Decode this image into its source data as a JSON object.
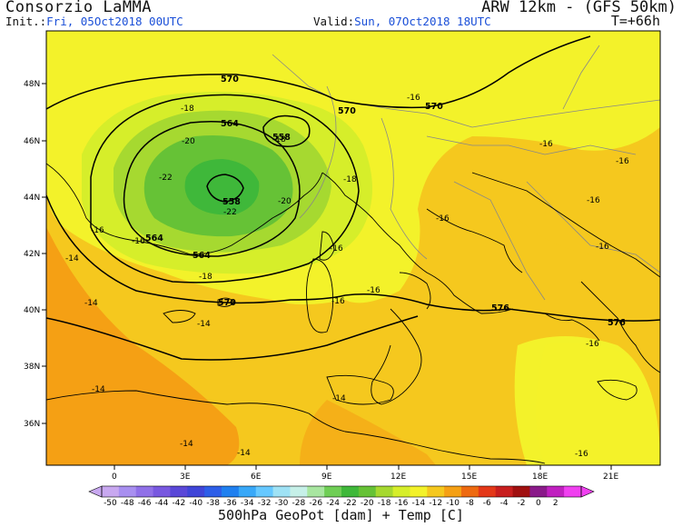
{
  "header": {
    "title_left": "Consorzio LaMMA",
    "title_right": "ARW 12km - (GFS 50km)",
    "init_label": "Init.:",
    "init_value": "Fri, 05Oct2018 00UTC",
    "valid_label": "Valid:",
    "valid_value": "Sun, 07Oct2018 18UTC",
    "lead_time": "T=+66h"
  },
  "axes": {
    "lat_labels": [
      "48N",
      "46N",
      "44N",
      "42N",
      "40N",
      "38N",
      "36N"
    ],
    "lon_labels": [
      "0",
      "3E",
      "6E",
      "9E",
      "12E",
      "15E",
      "18E",
      "21E"
    ]
  },
  "geopotential_contours_dam": [
    {
      "label": "570"
    },
    {
      "label": "570"
    },
    {
      "label": "570"
    },
    {
      "label": "570"
    },
    {
      "label": "576"
    },
    {
      "label": "576"
    },
    {
      "label": "564"
    },
    {
      "label": "564"
    },
    {
      "label": "564"
    },
    {
      "label": "558"
    },
    {
      "label": "558"
    }
  ],
  "temperature_labels_c": [
    {
      "label": "-18"
    },
    {
      "label": "-20"
    },
    {
      "label": "-22"
    },
    {
      "label": "-22"
    },
    {
      "label": "-20"
    },
    {
      "label": "-18"
    },
    {
      "label": "-18"
    },
    {
      "label": "-16"
    },
    {
      "label": "-16"
    },
    {
      "label": "-16"
    },
    {
      "label": "-16"
    },
    {
      "label": "-16"
    },
    {
      "label": "-16"
    },
    {
      "label": "-16"
    },
    {
      "label": "-16"
    },
    {
      "label": "-14"
    },
    {
      "label": "-14"
    },
    {
      "label": "-14"
    },
    {
      "label": "-14"
    },
    {
      "label": "-14"
    },
    {
      "label": "-14"
    },
    {
      "label": "-14"
    },
    {
      "label": "-16"
    },
    {
      "label": "-16"
    },
    {
      "label": "-16"
    },
    {
      "label": "-16"
    },
    {
      "label": "-18"
    },
    {
      "label": "-16"
    }
  ],
  "colorbar": {
    "ticks": [
      "-50",
      "-48",
      "-46",
      "-44",
      "-42",
      "-40",
      "-38",
      "-36",
      "-34",
      "-32",
      "-30",
      "-28",
      "-26",
      "-24",
      "-22",
      "-20",
      "-18",
      "-16",
      "-14",
      "-12",
      "-10",
      "-8",
      "-6",
      "-4",
      "-2",
      "0",
      "2"
    ],
    "colors": [
      "#c8a8f0",
      "#a88ff0",
      "#9070e8",
      "#7858e0",
      "#5a48d8",
      "#3f45d8",
      "#2d5ee8",
      "#1f80f0",
      "#38a8f8",
      "#66c8ff",
      "#9fe2f5",
      "#c6f0e8",
      "#a8e6a0",
      "#6fce55",
      "#3fb83a",
      "#66c236",
      "#a6d930",
      "#d6ee2a",
      "#f3f22a",
      "#f5c81e",
      "#f5a014",
      "#ee6a10",
      "#e43818",
      "#c81e1e",
      "#a01010",
      "#8a1a8a",
      "#c020c0",
      "#f040f0"
    ],
    "title": "500hPa GeoPot [dam] + Temp [C]"
  },
  "palette": {
    "yellow": "#f3f22a",
    "light_orange": "#f5c81e",
    "orange": "#f5a014",
    "yellow_green": "#d6ee2a",
    "light_green": "#a6d930",
    "green": "#66c236",
    "dark_green": "#3fb83a",
    "contour": "#000000",
    "coast": "#000000",
    "border": "#888888"
  }
}
